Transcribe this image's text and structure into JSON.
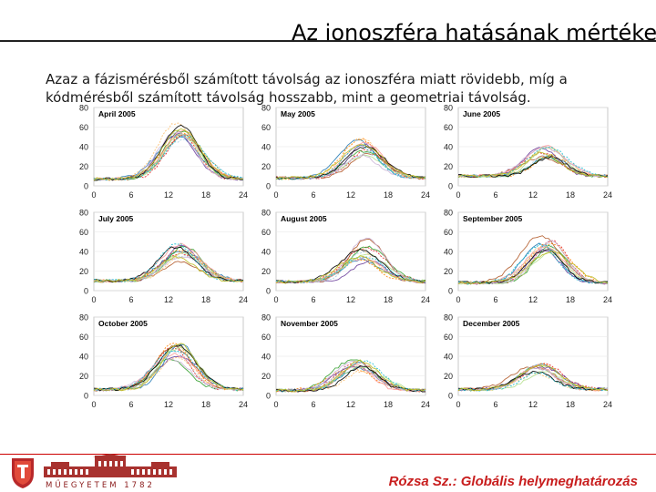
{
  "slide": {
    "title": "Az ionoszféra hatásának mértéke",
    "body_lines": [
      "Azaz a fázismérésből számított távolság az ionoszféra miatt rövidebb, míg a",
      "kódmérésből számított távolság hosszabb, mint a geometriai távolság."
    ]
  },
  "footer": {
    "institution": "MŰEGYETEM 1782",
    "text": "Rózsa Sz.: Globális helymeghatározás",
    "accent_color": "#c81e1e"
  },
  "chart_data": [
    {
      "type": "line",
      "title": "April 2005",
      "x_ticks": [
        0,
        6,
        12,
        18,
        24
      ],
      "y_ticks": [
        0,
        20,
        40,
        60,
        80
      ],
      "xlim": [
        0,
        24
      ],
      "ylim": [
        0,
        80
      ],
      "peak_hour": 14,
      "peak_mean": 55,
      "peak_spread": 10,
      "baseline": 7
    },
    {
      "type": "line",
      "title": "May 2005",
      "x_ticks": [
        0,
        6,
        12,
        18,
        24
      ],
      "y_ticks": [
        0,
        20,
        40,
        60,
        80
      ],
      "xlim": [
        0,
        24
      ],
      "ylim": [
        0,
        80
      ],
      "peak_hour": 14,
      "peak_mean": 40,
      "peak_spread": 12,
      "baseline": 8
    },
    {
      "type": "line",
      "title": "June 2005",
      "x_ticks": [
        0,
        6,
        12,
        18,
        24
      ],
      "y_ticks": [
        0,
        20,
        40,
        60,
        80
      ],
      "xlim": [
        0,
        24
      ],
      "ylim": [
        0,
        80
      ],
      "peak_hour": 14,
      "peak_mean": 35,
      "peak_spread": 8,
      "baseline": 10
    },
    {
      "type": "line",
      "title": "July 2005",
      "x_ticks": [
        0,
        6,
        12,
        18,
        24
      ],
      "y_ticks": [
        0,
        20,
        40,
        60,
        80
      ],
      "xlim": [
        0,
        24
      ],
      "ylim": [
        0,
        80
      ],
      "peak_hour": 14,
      "peak_mean": 38,
      "peak_spread": 10,
      "baseline": 10
    },
    {
      "type": "line",
      "title": "August 2005",
      "x_ticks": [
        0,
        6,
        12,
        18,
        24
      ],
      "y_ticks": [
        0,
        20,
        40,
        60,
        80
      ],
      "xlim": [
        0,
        24
      ],
      "ylim": [
        0,
        80
      ],
      "peak_hour": 14,
      "peak_mean": 42,
      "peak_spread": 12,
      "baseline": 9
    },
    {
      "type": "line",
      "title": "September 2005",
      "x_ticks": [
        0,
        6,
        12,
        18,
        24
      ],
      "y_ticks": [
        0,
        20,
        40,
        60,
        80
      ],
      "xlim": [
        0,
        24
      ],
      "ylim": [
        0,
        80
      ],
      "peak_hour": 14,
      "peak_mean": 48,
      "peak_spread": 10,
      "baseline": 8
    },
    {
      "type": "line",
      "title": "October 2005",
      "x_ticks": [
        0,
        6,
        12,
        18,
        24
      ],
      "y_ticks": [
        0,
        20,
        40,
        60,
        80
      ],
      "xlim": [
        0,
        24
      ],
      "ylim": [
        0,
        80
      ],
      "peak_hour": 13,
      "peak_mean": 44,
      "peak_spread": 10,
      "baseline": 6
    },
    {
      "type": "line",
      "title": "November 2005",
      "x_ticks": [
        0,
        6,
        12,
        18,
        24
      ],
      "y_ticks": [
        0,
        20,
        40,
        60,
        80
      ],
      "xlim": [
        0,
        24
      ],
      "ylim": [
        0,
        80
      ],
      "peak_hour": 13,
      "peak_mean": 30,
      "peak_spread": 8,
      "baseline": 5
    },
    {
      "type": "line",
      "title": "December 2005",
      "x_ticks": [
        0,
        6,
        12,
        18,
        24
      ],
      "y_ticks": [
        0,
        20,
        40,
        60,
        80
      ],
      "xlim": [
        0,
        24
      ],
      "ylim": [
        0,
        80
      ],
      "peak_hour": 13,
      "peak_mean": 28,
      "peak_spread": 6,
      "baseline": 6
    }
  ]
}
